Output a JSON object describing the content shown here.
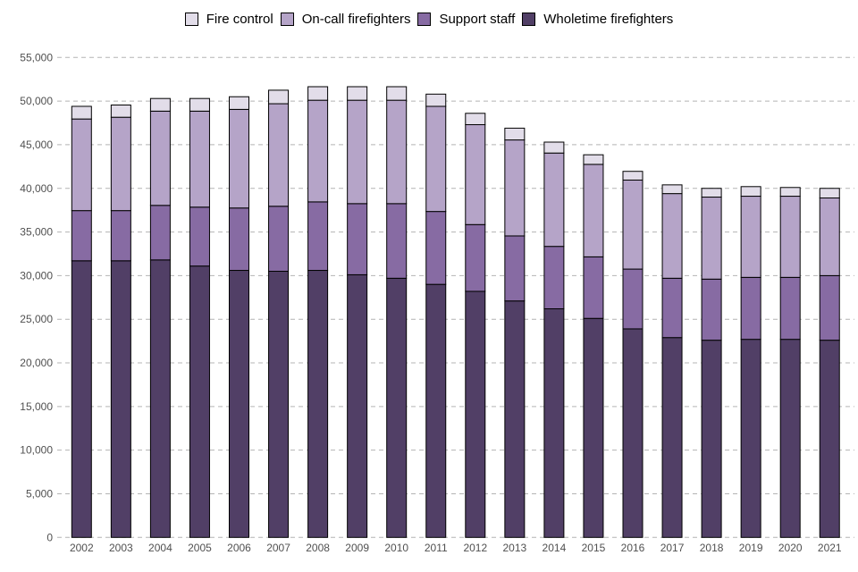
{
  "chart_data": {
    "type": "bar",
    "stacked": true,
    "title": "",
    "xlabel": "",
    "ylabel": "",
    "ylim": [
      0,
      55000
    ],
    "yticks": [
      0,
      5000,
      10000,
      15000,
      20000,
      25000,
      30000,
      35000,
      40000,
      45000,
      50000,
      55000
    ],
    "ytick_labels": [
      "0",
      "5,000",
      "10,000",
      "15,000",
      "20,000",
      "25,000",
      "30,000",
      "35,000",
      "40,000",
      "45,000",
      "50,000",
      "55,000"
    ],
    "grid": true,
    "legend_position": "top-center",
    "categories": [
      "2002",
      "2003",
      "2004",
      "2005",
      "2006",
      "2007",
      "2008",
      "2009",
      "2010",
      "2011",
      "2012",
      "2013",
      "2014",
      "2015",
      "2016",
      "2017",
      "2018",
      "2019",
      "2020",
      "2021"
    ],
    "series": [
      {
        "name": "Wholetime firefighters",
        "color": "#513f66",
        "values": [
          31700,
          31700,
          31800,
          31100,
          30600,
          30500,
          30600,
          30100,
          29700,
          29000,
          28200,
          27100,
          26200,
          25100,
          23900,
          22900,
          22600,
          22700,
          22700,
          22600
        ]
      },
      {
        "name": "Support staff",
        "color": "#876ba3",
        "values": [
          5750,
          5750,
          6250,
          6750,
          7150,
          7450,
          7850,
          8150,
          8550,
          8350,
          7650,
          7450,
          7150,
          7050,
          6850,
          6800,
          7000,
          7100,
          7100,
          7400
        ]
      },
      {
        "name": "On-call firefighters",
        "color": "#b5a4c8",
        "values": [
          10500,
          10700,
          10800,
          11000,
          11300,
          11750,
          11650,
          11850,
          11850,
          12050,
          11450,
          11000,
          10700,
          10600,
          10200,
          9700,
          9400,
          9300,
          9300,
          8900
        ]
      },
      {
        "name": "Fire control",
        "color": "#e2dde9",
        "values": [
          1450,
          1400,
          1450,
          1450,
          1450,
          1550,
          1550,
          1550,
          1550,
          1400,
          1300,
          1350,
          1250,
          1100,
          1000,
          1000,
          1000,
          1100,
          1000,
          1100
        ]
      }
    ],
    "legend_order": [
      "Fire control",
      "On-call firefighters",
      "Support staff",
      "Wholetime firefighters"
    ]
  }
}
